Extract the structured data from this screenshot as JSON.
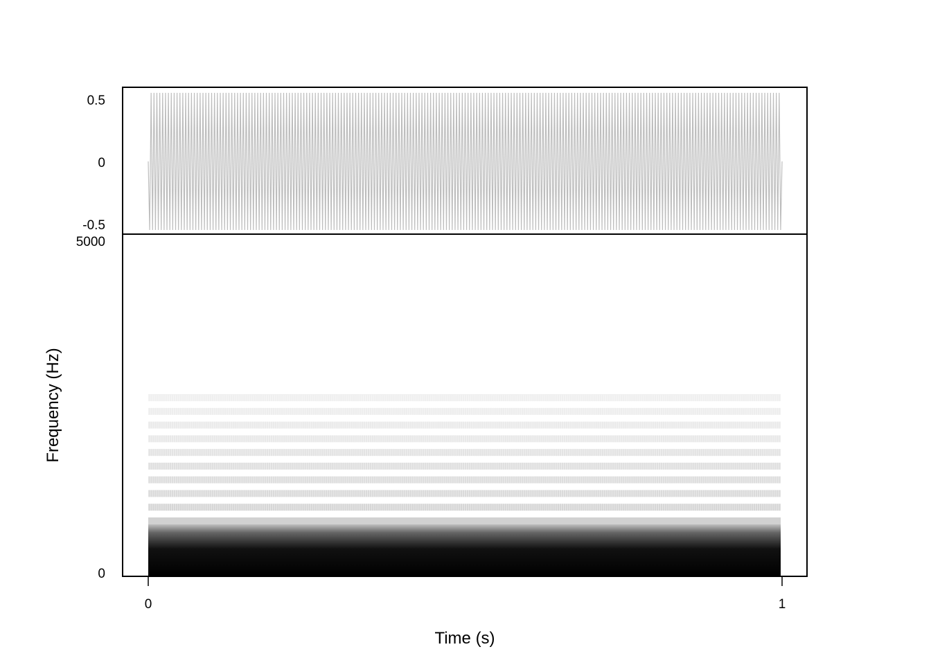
{
  "chart_data": [
    {
      "type": "line",
      "panel": "waveform",
      "title": "",
      "xlabel": "",
      "ylabel": "",
      "xlim": [
        0,
        1
      ],
      "ylim": [
        -0.55,
        0.55
      ],
      "yticks": [
        {
          "value": 0.5,
          "label": "0.5"
        },
        {
          "value": 0,
          "label": "0"
        },
        {
          "value": -0.5,
          "label": "-0.5"
        }
      ],
      "signal": {
        "start": 0,
        "end": 1,
        "amplitude": 0.55,
        "cycles": 220
      },
      "line_color": "#bdbdbd",
      "grid": false
    },
    {
      "type": "heatmap",
      "panel": "spectrogram",
      "xlabel": "Time (s)",
      "ylabel": "Frequency (Hz)",
      "xlim": [
        0,
        1
      ],
      "ylim": [
        0,
        5000
      ],
      "xticks": [
        {
          "value": 0,
          "label": "0"
        },
        {
          "value": 1,
          "label": "1"
        }
      ],
      "yticks": [
        {
          "value": 5000,
          "label": "5000"
        },
        {
          "value": 0,
          "label": "0"
        }
      ],
      "signal": {
        "start": 0,
        "end": 1
      },
      "bands": [
        {
          "freq": 0,
          "intensity": 1.0
        },
        {
          "freq": 200,
          "intensity": 0.95
        },
        {
          "freq": 400,
          "intensity": 0.75
        },
        {
          "freq": 600,
          "intensity": 0.35
        },
        {
          "freq": 800,
          "intensity": 0.2
        },
        {
          "freq": 1000,
          "intensity": 0.18
        },
        {
          "freq": 1200,
          "intensity": 0.16
        },
        {
          "freq": 1400,
          "intensity": 0.15
        },
        {
          "freq": 1600,
          "intensity": 0.14
        },
        {
          "freq": 1800,
          "intensity": 0.12
        },
        {
          "freq": 2000,
          "intensity": 0.1
        },
        {
          "freq": 2200,
          "intensity": 0.09
        },
        {
          "freq": 2400,
          "intensity": 0.08
        },
        {
          "freq": 2600,
          "intensity": 0.07
        }
      ],
      "color_scale": [
        "#ffffff",
        "#000000"
      ],
      "grid": false
    }
  ]
}
